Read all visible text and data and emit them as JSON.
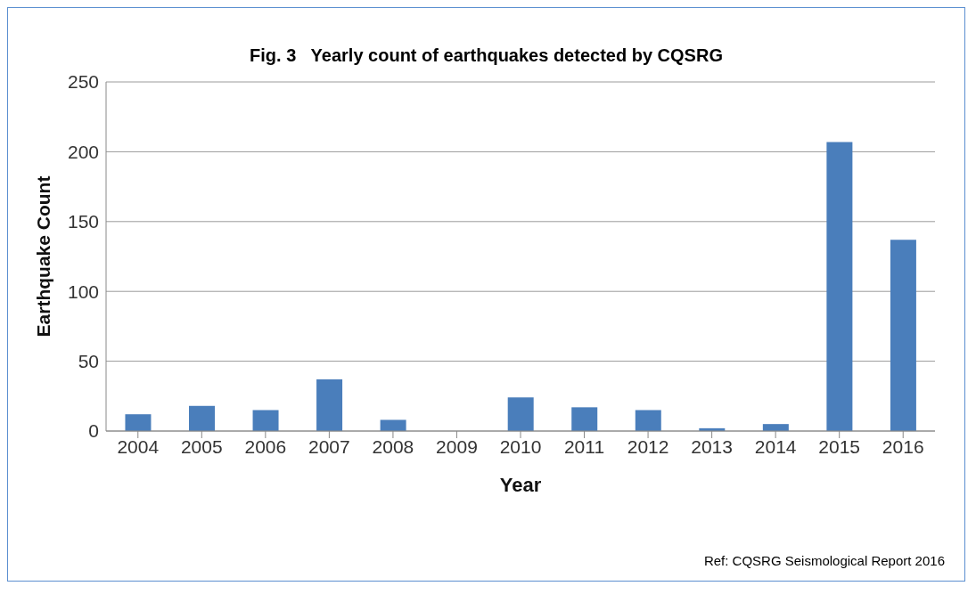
{
  "chart_data": {
    "type": "bar",
    "title": "Fig. 3   Yearly count of earthquakes detected by CQSRG",
    "xlabel": "Year",
    "ylabel": "Earthquake Count",
    "categories": [
      "2004",
      "2005",
      "2006",
      "2007",
      "2008",
      "2009",
      "2010",
      "2011",
      "2012",
      "2013",
      "2014",
      "2015",
      "2016"
    ],
    "values": [
      12,
      18,
      15,
      37,
      8,
      0,
      24,
      17,
      15,
      2,
      5,
      207,
      137
    ],
    "color": "#4a7ebb",
    "ylim": [
      0,
      250
    ],
    "yticks": [
      0,
      50,
      100,
      150,
      200,
      250
    ],
    "grid": "y",
    "annotations": [
      "Ref: CQSRG Seismological Report 2016"
    ]
  }
}
